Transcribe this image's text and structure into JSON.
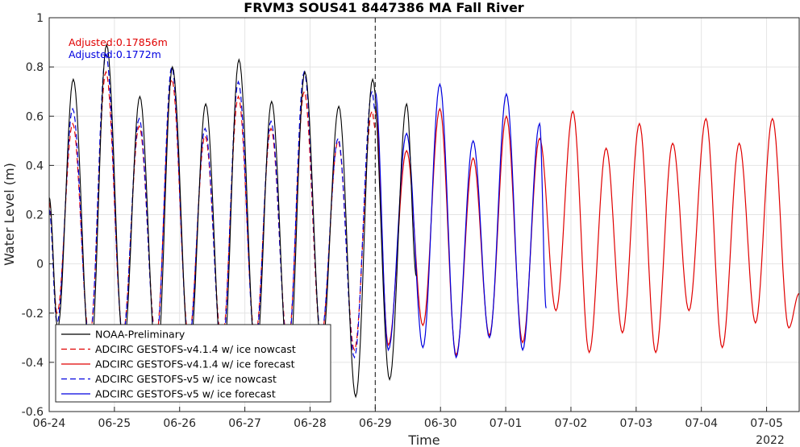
{
  "chart_data": {
    "type": "line",
    "title": "FRVM3 SOUS41 8447386 MA Fall River",
    "xlabel": "Time",
    "ylabel": "Water Level (m)",
    "xlim": [
      "06-24 00:00",
      "07-05 12:00"
    ],
    "ylim": [
      -0.6,
      1.0
    ],
    "x_ticks": [
      "06-24",
      "06-25",
      "06-26",
      "06-27",
      "06-28",
      "06-29",
      "06-30",
      "07-01",
      "07-02",
      "07-03",
      "07-04",
      "07-05"
    ],
    "x_year_label": "2022",
    "y_ticks": [
      "-0.6",
      "-0.4",
      "-0.2",
      "0",
      "0.2",
      "0.4",
      "0.6",
      "0.8",
      "1"
    ],
    "grid": true,
    "nowcast_forecast_divider": "06-29 00:00",
    "legend_position": "bottom-left",
    "annotations": [
      {
        "text": "Adjusted:0.17856m",
        "color": "#e00000"
      },
      {
        "text": "Adjusted:0.1772m",
        "color": "#0000e0"
      }
    ],
    "series": [
      {
        "name": "NOAA-Preliminary",
        "color": "#000000",
        "dash": "solid",
        "x_days": [
          0.0,
          0.13,
          0.37,
          0.63,
          0.88,
          1.14,
          1.39,
          1.65,
          1.89,
          2.15,
          2.4,
          2.66,
          2.91,
          3.17,
          3.41,
          3.67,
          3.92,
          4.18,
          4.44,
          4.7,
          4.96,
          5.22,
          5.48,
          5.63
        ],
        "y": [
          0.27,
          -0.26,
          0.75,
          -0.4,
          0.89,
          -0.34,
          0.68,
          -0.42,
          0.8,
          -0.38,
          0.65,
          -0.44,
          0.83,
          -0.39,
          0.66,
          -0.45,
          0.78,
          -0.35,
          0.64,
          -0.54,
          0.75,
          -0.47,
          0.65,
          -0.05
        ]
      },
      {
        "name": "ADCIRC GESTOFS-v4.1.4 w/ ice nowcast",
        "color": "#e00000",
        "dash": "dashed",
        "x_days": [
          0.0,
          0.12,
          0.36,
          0.62,
          0.87,
          1.13,
          1.38,
          1.64,
          1.88,
          2.14,
          2.39,
          2.65,
          2.9,
          3.16,
          3.4,
          3.66,
          3.91,
          4.17,
          4.43,
          4.68,
          4.95,
          5.0
        ],
        "y": [
          0.25,
          -0.2,
          0.57,
          -0.3,
          0.78,
          -0.28,
          0.56,
          -0.3,
          0.75,
          -0.3,
          0.52,
          -0.32,
          0.68,
          -0.3,
          0.55,
          -0.33,
          0.7,
          -0.3,
          0.5,
          -0.35,
          0.62,
          0.55
        ]
      },
      {
        "name": "ADCIRC GESTOFS-v4.1.4 w/ ice forecast",
        "color": "#e00000",
        "dash": "solid",
        "x_days": [
          5.0,
          5.2,
          5.48,
          5.73,
          5.99,
          6.24,
          6.5,
          6.75,
          7.01,
          7.26,
          7.52,
          7.77,
          8.03,
          8.28,
          8.54,
          8.79,
          9.05,
          9.3,
          9.56,
          9.81,
          10.07,
          10.32,
          10.58,
          10.83,
          11.09,
          11.34,
          11.5
        ],
        "y": [
          0.62,
          -0.33,
          0.46,
          -0.25,
          0.63,
          -0.37,
          0.43,
          -0.29,
          0.6,
          -0.32,
          0.51,
          -0.19,
          0.62,
          -0.36,
          0.47,
          -0.28,
          0.57,
          -0.36,
          0.49,
          -0.19,
          0.59,
          -0.34,
          0.49,
          -0.24,
          0.59,
          -0.26,
          -0.12
        ]
      },
      {
        "name": "ADCIRC GESTOFS-v5 w/ ice nowcast",
        "color": "#0000e0",
        "dash": "dashed",
        "x_days": [
          0.0,
          0.12,
          0.36,
          0.62,
          0.87,
          1.13,
          1.38,
          1.64,
          1.88,
          2.14,
          2.39,
          2.65,
          2.9,
          3.16,
          3.4,
          3.66,
          3.91,
          4.17,
          4.43,
          4.68,
          4.95,
          5.0
        ],
        "y": [
          0.22,
          -0.24,
          0.63,
          -0.32,
          0.85,
          -0.29,
          0.59,
          -0.33,
          0.8,
          -0.32,
          0.55,
          -0.36,
          0.74,
          -0.33,
          0.58,
          -0.36,
          0.78,
          -0.29,
          0.51,
          -0.38,
          0.7,
          0.62
        ]
      },
      {
        "name": "ADCIRC GESTOFS-v5 w/ ice forecast",
        "color": "#0000e0",
        "dash": "solid",
        "x_days": [
          5.0,
          5.2,
          5.48,
          5.73,
          5.99,
          6.24,
          6.5,
          6.75,
          7.01,
          7.26,
          7.52,
          7.62
        ],
        "y": [
          0.7,
          -0.35,
          0.53,
          -0.34,
          0.73,
          -0.38,
          0.5,
          -0.3,
          0.69,
          -0.35,
          0.57,
          -0.18
        ]
      }
    ]
  }
}
